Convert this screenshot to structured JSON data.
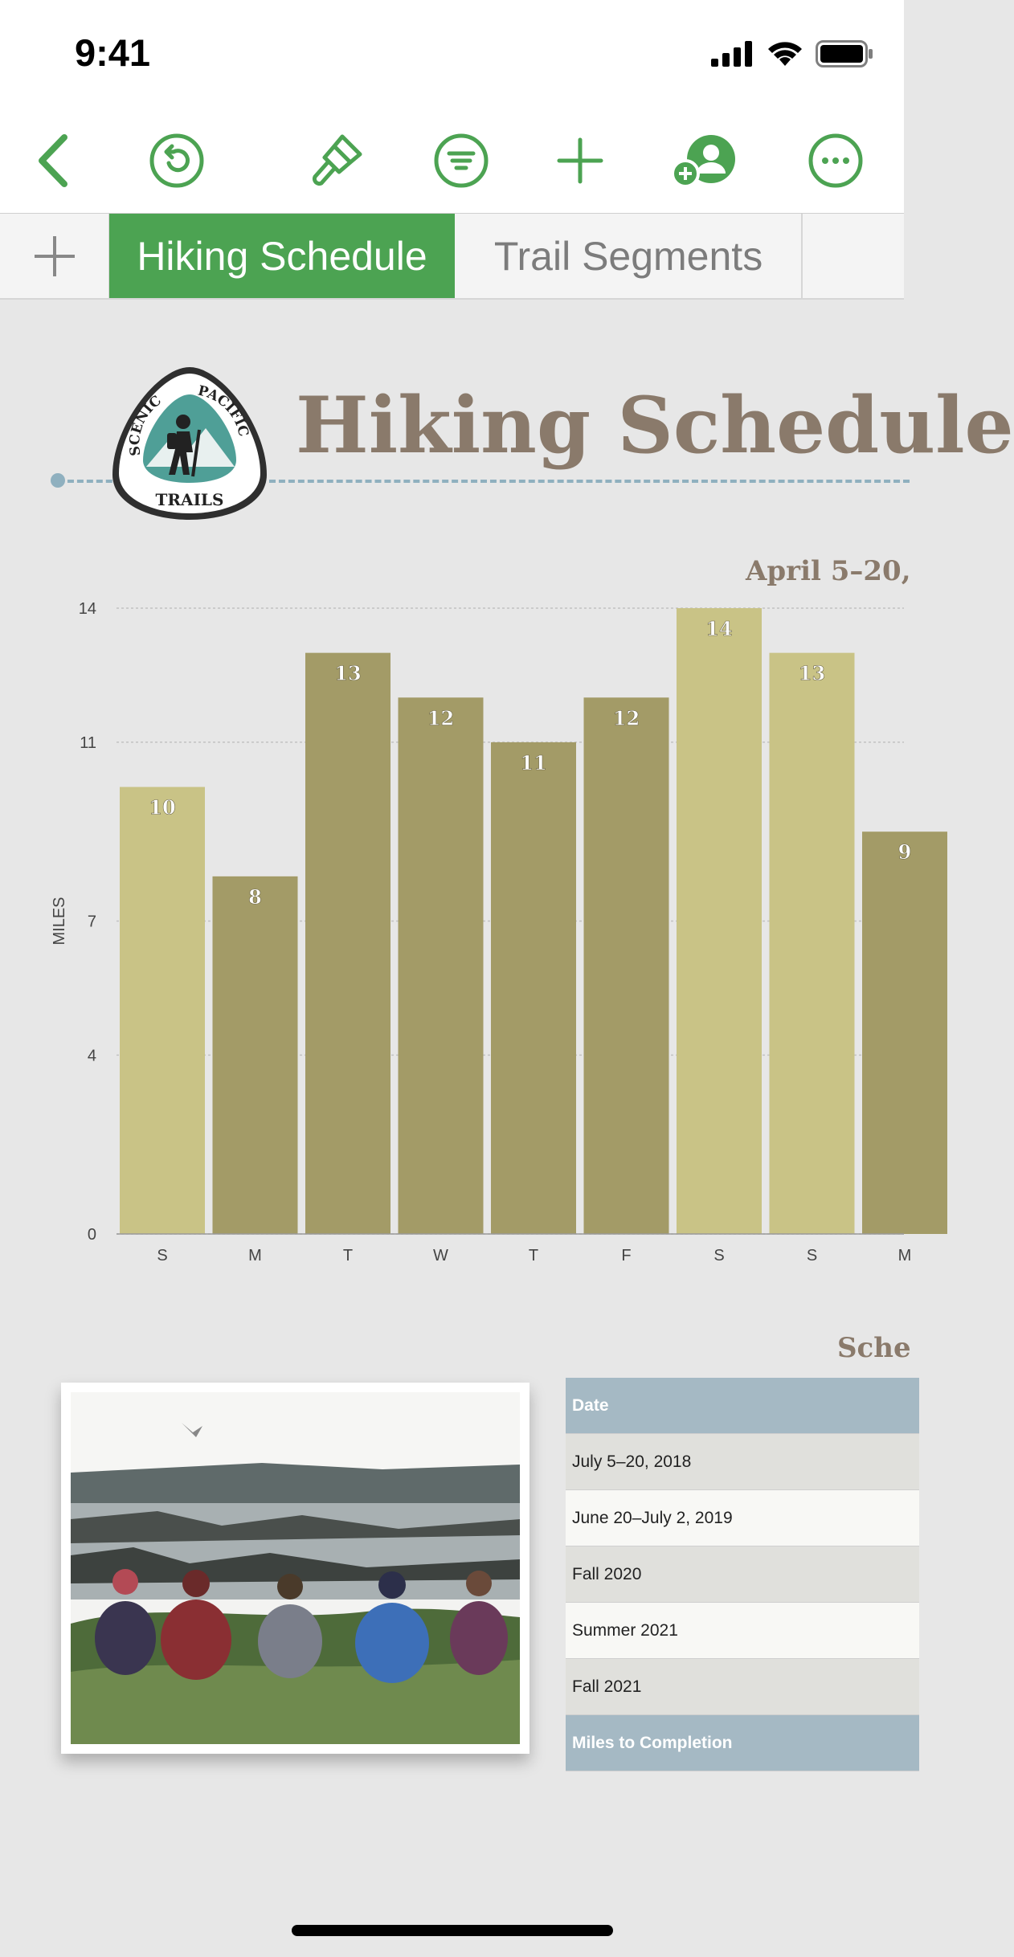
{
  "status_bar": {
    "time": "9:41"
  },
  "toolbar": {
    "icons": [
      "back-icon",
      "undo-icon",
      "paintbrush-icon",
      "filter-icon",
      "add-icon",
      "collaborate-icon",
      "more-icon"
    ]
  },
  "tabs": [
    {
      "label": "Hiking Schedule",
      "active": true
    },
    {
      "label": "Trail Segments",
      "active": false
    }
  ],
  "logo": {
    "text": "SCENIC PACIFIC TRAILS"
  },
  "sheet": {
    "title": "Hiking Schedule"
  },
  "chart_data": {
    "type": "bar",
    "subtitle": "April 5–20,",
    "ylabel": "MILES",
    "xlabel": "",
    "ylim": [
      0,
      14
    ],
    "yticks": [
      "0",
      "4",
      "7",
      "11",
      "14"
    ],
    "categories": [
      "S",
      "M",
      "T",
      "W",
      "T",
      "F",
      "S",
      "S",
      "M"
    ],
    "values": [
      10,
      8,
      13,
      12,
      11,
      12,
      14,
      13,
      9
    ],
    "value_labels": [
      "10",
      "8",
      "13",
      "12",
      "11",
      "12",
      "14",
      "13",
      "9"
    ],
    "grid": true,
    "colors": [
      "#c9c386",
      "#a39b67",
      "#a39b67",
      "#a39b67",
      "#a39b67",
      "#a39b67",
      "#c9c386",
      "#c9c386",
      "#a39b67"
    ]
  },
  "schedule": {
    "title": "Sche",
    "header": "Date",
    "rows": [
      "July 5–20, 2018",
      "June 20–July 2, 2019",
      "Fall 2020",
      "Summer 2021",
      "Fall 2021"
    ],
    "footer": "Miles to Completion"
  },
  "colors": {
    "accent": "#4ca352",
    "title": "#8a7a6b",
    "table_header": "#a5b9c4"
  }
}
